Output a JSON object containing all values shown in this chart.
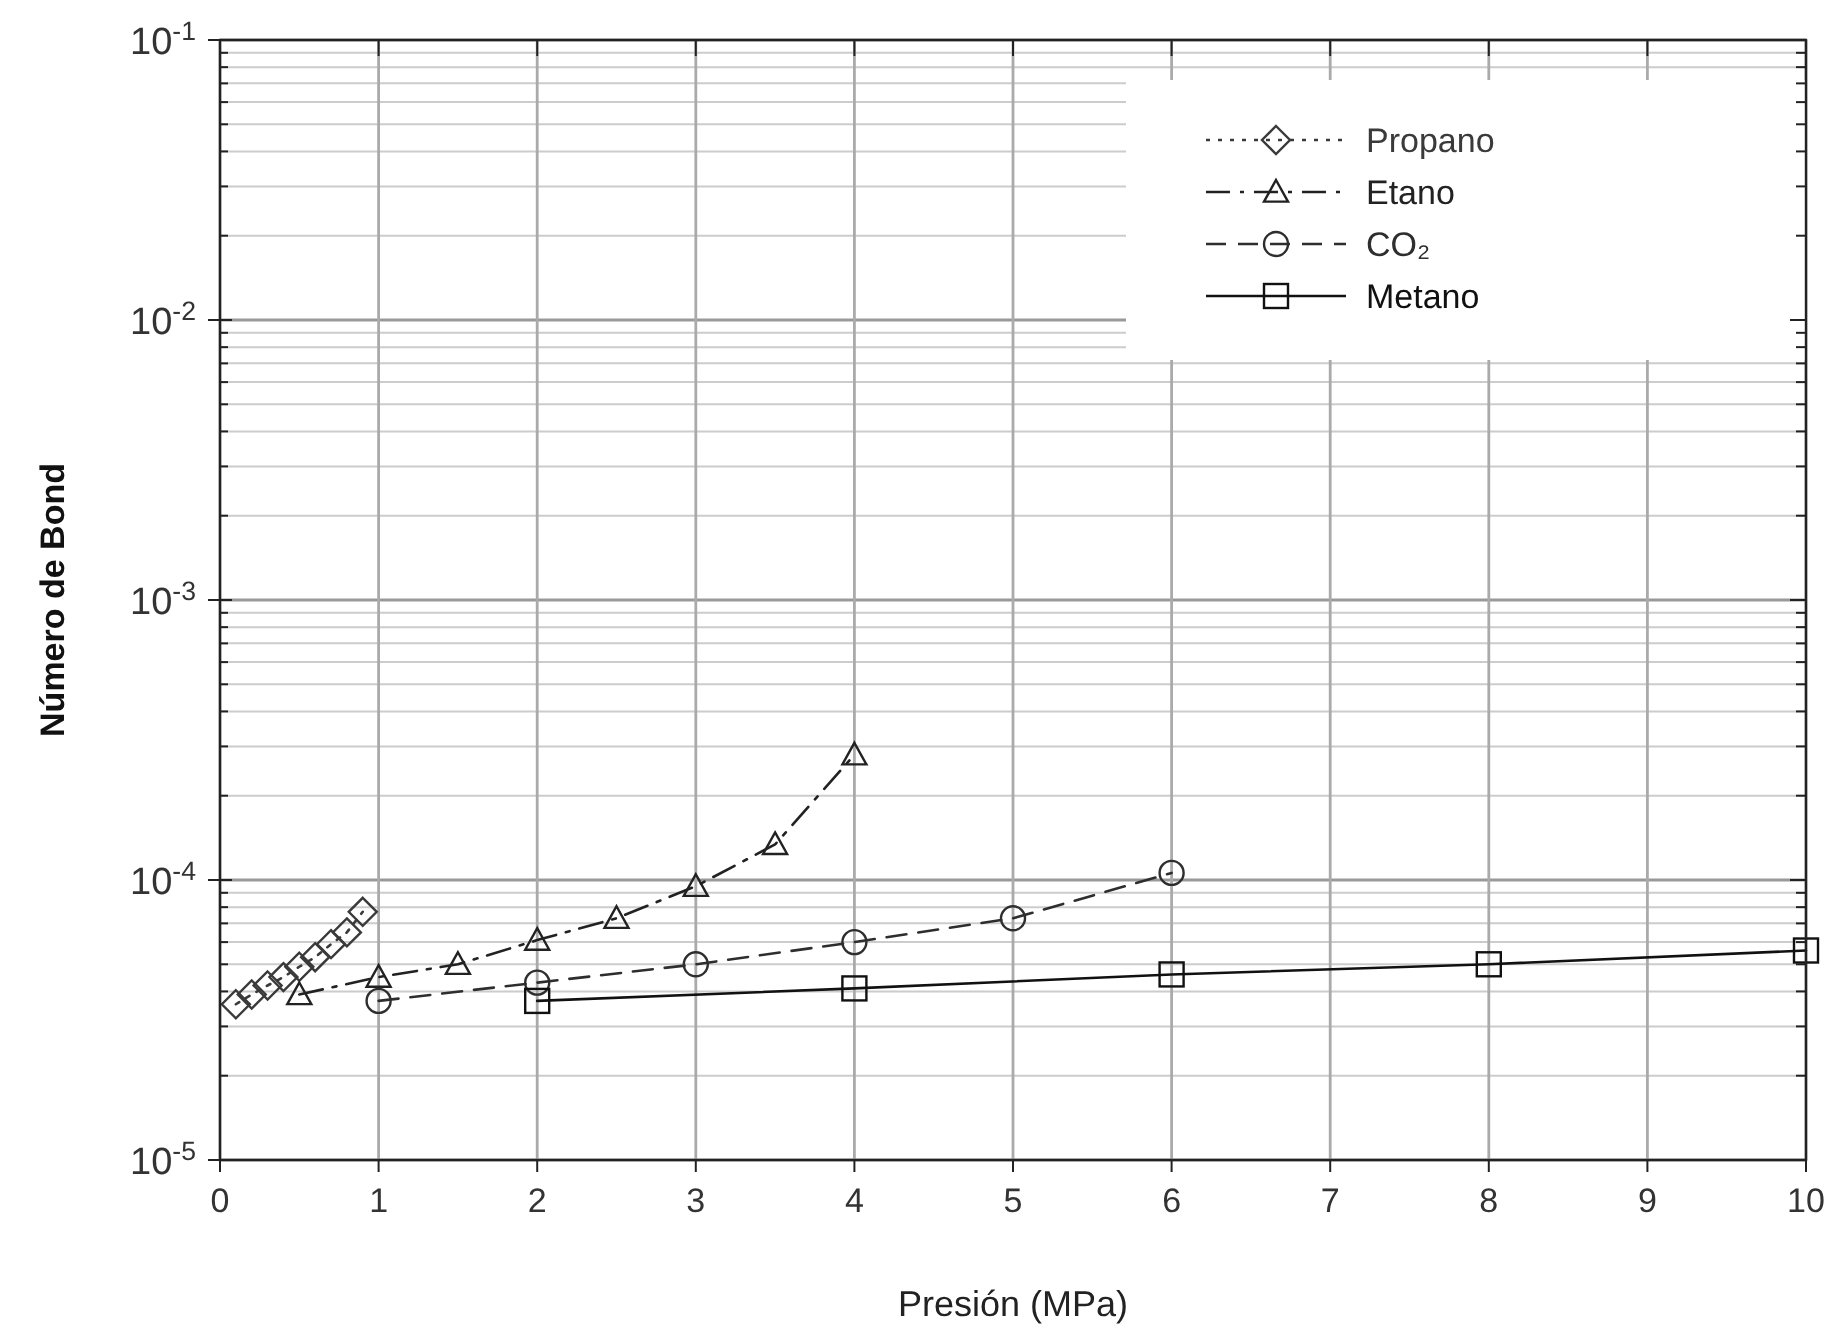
{
  "chart_data": {
    "type": "line",
    "xlabel": "Presión (MPa)",
    "ylabel": "Número de Bond",
    "log": "y",
    "grid": true,
    "legend": "top right",
    "xlim": [
      0,
      10
    ],
    "xticks": [
      0,
      1,
      2,
      3,
      4,
      5,
      6,
      7,
      8,
      9,
      10
    ],
    "ylim": [
      1e-05,
      0.1
    ],
    "yticks": [
      {
        "value": 1e-05,
        "label": "10$^{-5}$"
      },
      {
        "value": 2e-05,
        "label": null
      },
      {
        "value": 3e-05,
        "label": null
      },
      {
        "value": 4e-05,
        "label": null
      },
      {
        "value": 5e-05,
        "label": null
      },
      {
        "value": 6e-05,
        "label": null
      },
      {
        "value": 7e-05,
        "label": null
      },
      {
        "value": 8e-05,
        "label": null
      },
      {
        "value": 9e-05,
        "label": null
      },
      {
        "value": 0.0001,
        "label": "10$^{-4}$"
      },
      {
        "value": 0.0002,
        "label": null
      },
      {
        "value": 0.0003,
        "label": null
      },
      {
        "value": 0.0004,
        "label": null
      },
      {
        "value": 0.0005,
        "label": null
      },
      {
        "value": 0.0006,
        "label": null
      },
      {
        "value": 0.0007,
        "label": null
      },
      {
        "value": 0.0008,
        "label": null
      },
      {
        "value": 0.0009,
        "label": null
      },
      {
        "value": 0.001,
        "label": "10$^{-3}$"
      },
      {
        "value": 0.002,
        "label": null
      },
      {
        "value": 0.003,
        "label": null
      },
      {
        "value": 0.004,
        "label": null
      },
      {
        "value": 0.005,
        "label": null
      },
      {
        "value": 0.006,
        "label": null
      },
      {
        "value": 0.007,
        "label": null
      },
      {
        "value": 0.008,
        "label": null
      },
      {
        "value": 0.009,
        "label": null
      },
      {
        "value": 0.01,
        "label": "10$^{-2}$"
      },
      {
        "value": 0.02,
        "label": null
      },
      {
        "value": 0.03,
        "label": null
      },
      {
        "value": 0.04,
        "label": null
      },
      {
        "value": 0.05,
        "label": null
      },
      {
        "value": 0.06,
        "label": null
      },
      {
        "value": 0.07,
        "label": null
      },
      {
        "value": 0.08,
        "label": null
      },
      {
        "value": 0.09,
        "label": null
      },
      {
        "value": 0.1,
        "label": "10$^{-1}$"
      }
    ],
    "series": [
      {
        "name": "Propano",
        "color": "#3a3a3a",
        "marker": "diamond",
        "line_style": "dotted",
        "x": [
          0.1,
          0.2,
          0.3,
          0.4,
          0.5,
          0.6,
          0.7,
          0.8,
          0.9
        ],
        "values": [
          3.6e-05,
          3.9e-05,
          4.2e-05,
          4.5e-05,
          4.9e-05,
          5.3e-05,
          5.9e-05,
          6.5e-05,
          7.7e-05
        ]
      },
      {
        "name": "Etano",
        "color": "#222222",
        "marker": "triangle",
        "line_style": "dashdot",
        "x": [
          0.5,
          1,
          1.5,
          2,
          2.5,
          3,
          3.5,
          4
        ],
        "values": [
          3.9e-05,
          4.5e-05,
          5e-05,
          6.1e-05,
          7.3e-05,
          9.5e-05,
          0.000134,
          0.00028
        ]
      },
      {
        "name": "CO₂",
        "color": "#2e2e2e",
        "marker": "circle",
        "line_style": "dashed",
        "x": [
          1,
          2,
          3,
          4,
          5,
          6
        ],
        "values": [
          3.7e-05,
          4.3e-05,
          5e-05,
          6e-05,
          7.3e-05,
          0.000106
        ]
      },
      {
        "name": "Metano",
        "color": "#111111",
        "marker": "square",
        "line_style": "solid",
        "x": [
          2,
          4,
          6,
          8,
          10
        ],
        "values": [
          3.7e-05,
          4.1e-05,
          4.6e-05,
          5e-05,
          5.6e-05
        ]
      }
    ]
  }
}
